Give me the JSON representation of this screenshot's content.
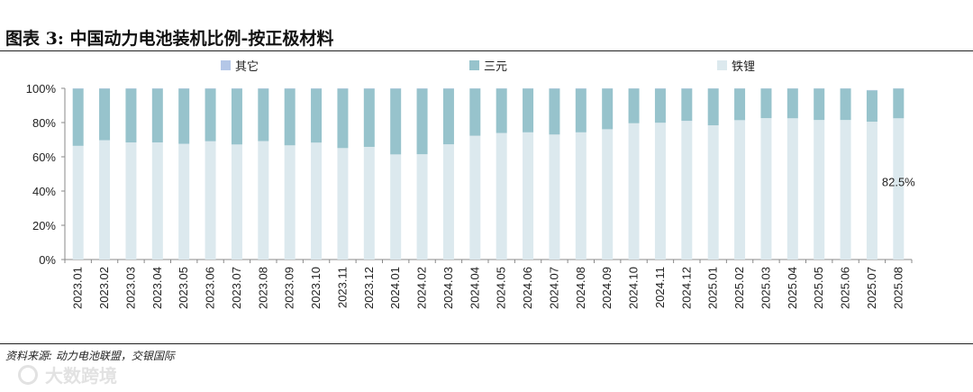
{
  "title": "图表 3: 中国动力电池装机比例-按正极材料",
  "source": "资料来源: 动力电池联盟，交银国际",
  "watermark": "大数跨境",
  "colors": {
    "other": "#b4c7e7",
    "ternary": "#97c3cc",
    "lfp": "#dce9ee",
    "axis": "#888888"
  },
  "chart_data": {
    "type": "bar",
    "stacked": true,
    "categories": [
      "2023.01",
      "2023.02",
      "2023.03",
      "2023.04",
      "2023.05",
      "2023.06",
      "2023.07",
      "2023.08",
      "2023.09",
      "2023.10",
      "2023.11",
      "2023.12",
      "2024.01",
      "2024.02",
      "2024.03",
      "2024.04",
      "2024.05",
      "2024.06",
      "2024.07",
      "2024.08",
      "2024.09",
      "2024.10",
      "2024.11",
      "2024.12",
      "2025.01",
      "2025.02",
      "2025.03",
      "2025.04",
      "2025.05",
      "2025.06",
      "2025.07",
      "2025.08"
    ],
    "series": [
      {
        "name": "铁锂",
        "values": [
          66.4,
          69.7,
          68.4,
          68.4,
          67.6,
          69.1,
          67.2,
          69.2,
          66.7,
          68.3,
          65.1,
          65.8,
          61.4,
          61.5,
          67.3,
          72.3,
          73.9,
          74.3,
          73.0,
          74.3,
          76.1,
          79.6,
          79.9,
          81.0,
          78.4,
          81.4,
          82.6,
          82.5,
          81.5,
          81.5,
          80.5,
          82.5
        ]
      },
      {
        "name": "三元",
        "values": [
          33.4,
          30.1,
          31.4,
          31.4,
          32.2,
          30.7,
          32.6,
          30.6,
          33.1,
          31.5,
          34.7,
          34.0,
          38.4,
          38.3,
          32.5,
          27.6,
          26.0,
          25.6,
          26.8,
          25.5,
          23.8,
          20.3,
          19.9,
          18.8,
          21.5,
          18.5,
          17.3,
          17.4,
          18.4,
          18.4,
          18.3,
          17.4
        ]
      },
      {
        "name": "其它",
        "values": [
          0.2,
          0.2,
          0.2,
          0.2,
          0.2,
          0.2,
          0.2,
          0.2,
          0.2,
          0.2,
          0.2,
          0.2,
          0.2,
          0.2,
          0.2,
          0.1,
          0.1,
          0.1,
          0.2,
          0.2,
          0.1,
          0.1,
          0.2,
          0.2,
          0.1,
          0.1,
          0.1,
          0.1,
          0.1,
          0.1,
          0.2,
          0.1
        ]
      }
    ],
    "legend": [
      "其它",
      "三元",
      "铁锂"
    ],
    "legend_position": "top",
    "yticks": [
      "0%",
      "20%",
      "40%",
      "60%",
      "80%",
      "100%"
    ],
    "ylim": [
      0,
      100
    ],
    "annotation": {
      "category": "2025.08",
      "text": "82.5%"
    },
    "grid": false
  }
}
